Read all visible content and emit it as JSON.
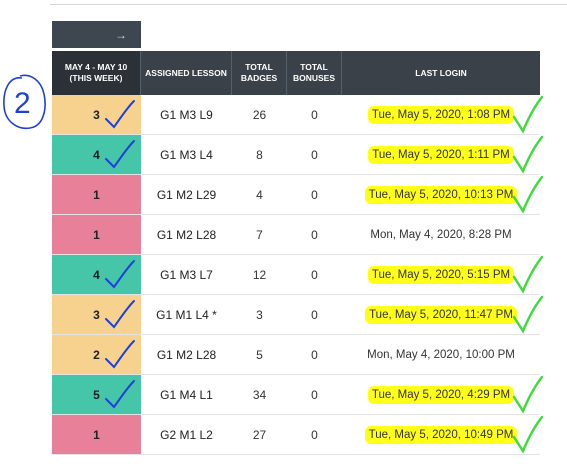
{
  "nav": {
    "arrow_icon": "arrow-right-icon",
    "arrow_glyph": "→"
  },
  "headers": {
    "week": "MAY 4 - MAY 10 (THIS WEEK)",
    "lesson": "ASSIGNED LESSON",
    "badges": "TOTAL BADGES",
    "bonuses": "TOTAL BONUSES",
    "login": "LAST LOGIN"
  },
  "colors": {
    "status_yellow": "#f7d28e",
    "status_green": "#45c6a9",
    "status_red": "#e8809a",
    "highlight": "#ffff1a",
    "check_green": "#3ddc3a",
    "pen_blue": "#1f3fd6"
  },
  "annotations": {
    "circled_number": "2"
  },
  "rows": [
    {
      "week": "3",
      "status": "yellow",
      "lesson": "G1 M3 L9",
      "badges": "26",
      "bonuses": "0",
      "login": "Tue, May 5, 2020, 1:08 PM",
      "highlighted": true,
      "blue_check": true,
      "green_check": true
    },
    {
      "week": "4",
      "status": "green",
      "lesson": "G1 M3 L4",
      "badges": "8",
      "bonuses": "0",
      "login": "Tue, May 5, 2020, 1:11 PM",
      "highlighted": true,
      "blue_check": true,
      "green_check": true
    },
    {
      "week": "1",
      "status": "red",
      "lesson": "G1 M2 L29",
      "badges": "4",
      "bonuses": "0",
      "login": "Tue, May 5, 2020, 10:13 PM",
      "highlighted": true,
      "blue_check": false,
      "green_check": true
    },
    {
      "week": "1",
      "status": "red",
      "lesson": "G1 M2 L28",
      "badges": "7",
      "bonuses": "0",
      "login": "Mon, May 4, 2020, 8:28 PM",
      "highlighted": false,
      "blue_check": false,
      "green_check": false
    },
    {
      "week": "4",
      "status": "green",
      "lesson": "G1 M3 L7",
      "badges": "12",
      "bonuses": "0",
      "login": "Tue, May 5, 2020, 5:15 PM",
      "highlighted": true,
      "blue_check": true,
      "green_check": true
    },
    {
      "week": "3",
      "status": "yellow",
      "lesson": "G1 M1 L4 *",
      "badges": "3",
      "bonuses": "0",
      "login": "Tue, May 5, 2020, 11:47 PM",
      "highlighted": true,
      "blue_check": true,
      "green_check": true
    },
    {
      "week": "2",
      "status": "yellow",
      "lesson": "G1 M2 L28",
      "badges": "5",
      "bonuses": "0",
      "login": "Mon, May 4, 2020, 10:00 PM",
      "highlighted": false,
      "blue_check": true,
      "green_check": false
    },
    {
      "week": "5",
      "status": "green",
      "lesson": "G1 M4 L1",
      "badges": "34",
      "bonuses": "0",
      "login": "Tue, May 5, 2020, 4:29 PM",
      "highlighted": true,
      "blue_check": true,
      "green_check": true
    },
    {
      "week": "1",
      "status": "red",
      "lesson": "G2 M1 L2",
      "badges": "27",
      "bonuses": "0",
      "login": "Tue, May 5, 2020, 10:49 PM",
      "highlighted": true,
      "blue_check": false,
      "green_check": true
    }
  ]
}
